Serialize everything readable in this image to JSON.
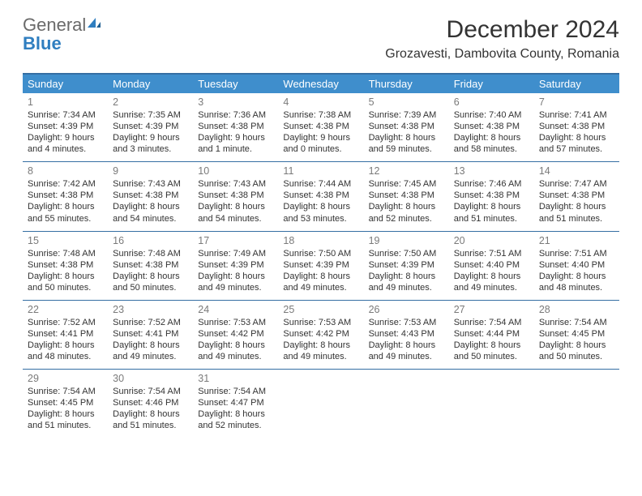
{
  "brand": {
    "part1": "General",
    "part2": "Blue"
  },
  "title": "December 2024",
  "location": "Grozavesti, Dambovita County, Romania",
  "colors": {
    "header_bar": "#3f8ecc",
    "rule": "#356fa3",
    "logo_gray": "#6a6a6a",
    "logo_blue": "#2f7ec0",
    "text": "#333333",
    "daynum": "#7a7a7a",
    "background": "#ffffff"
  },
  "fonts": {
    "title_size": 30,
    "location_size": 16,
    "dow_size": 13,
    "cell_size": 11
  },
  "days_of_week": [
    "Sunday",
    "Monday",
    "Tuesday",
    "Wednesday",
    "Thursday",
    "Friday",
    "Saturday"
  ],
  "weeks": [
    [
      {
        "n": "1",
        "sunrise": "Sunrise: 7:34 AM",
        "sunset": "Sunset: 4:39 PM",
        "day1": "Daylight: 9 hours",
        "day2": "and 4 minutes."
      },
      {
        "n": "2",
        "sunrise": "Sunrise: 7:35 AM",
        "sunset": "Sunset: 4:39 PM",
        "day1": "Daylight: 9 hours",
        "day2": "and 3 minutes."
      },
      {
        "n": "3",
        "sunrise": "Sunrise: 7:36 AM",
        "sunset": "Sunset: 4:38 PM",
        "day1": "Daylight: 9 hours",
        "day2": "and 1 minute."
      },
      {
        "n": "4",
        "sunrise": "Sunrise: 7:38 AM",
        "sunset": "Sunset: 4:38 PM",
        "day1": "Daylight: 9 hours",
        "day2": "and 0 minutes."
      },
      {
        "n": "5",
        "sunrise": "Sunrise: 7:39 AM",
        "sunset": "Sunset: 4:38 PM",
        "day1": "Daylight: 8 hours",
        "day2": "and 59 minutes."
      },
      {
        "n": "6",
        "sunrise": "Sunrise: 7:40 AM",
        "sunset": "Sunset: 4:38 PM",
        "day1": "Daylight: 8 hours",
        "day2": "and 58 minutes."
      },
      {
        "n": "7",
        "sunrise": "Sunrise: 7:41 AM",
        "sunset": "Sunset: 4:38 PM",
        "day1": "Daylight: 8 hours",
        "day2": "and 57 minutes."
      }
    ],
    [
      {
        "n": "8",
        "sunrise": "Sunrise: 7:42 AM",
        "sunset": "Sunset: 4:38 PM",
        "day1": "Daylight: 8 hours",
        "day2": "and 55 minutes."
      },
      {
        "n": "9",
        "sunrise": "Sunrise: 7:43 AM",
        "sunset": "Sunset: 4:38 PM",
        "day1": "Daylight: 8 hours",
        "day2": "and 54 minutes."
      },
      {
        "n": "10",
        "sunrise": "Sunrise: 7:43 AM",
        "sunset": "Sunset: 4:38 PM",
        "day1": "Daylight: 8 hours",
        "day2": "and 54 minutes."
      },
      {
        "n": "11",
        "sunrise": "Sunrise: 7:44 AM",
        "sunset": "Sunset: 4:38 PM",
        "day1": "Daylight: 8 hours",
        "day2": "and 53 minutes."
      },
      {
        "n": "12",
        "sunrise": "Sunrise: 7:45 AM",
        "sunset": "Sunset: 4:38 PM",
        "day1": "Daylight: 8 hours",
        "day2": "and 52 minutes."
      },
      {
        "n": "13",
        "sunrise": "Sunrise: 7:46 AM",
        "sunset": "Sunset: 4:38 PM",
        "day1": "Daylight: 8 hours",
        "day2": "and 51 minutes."
      },
      {
        "n": "14",
        "sunrise": "Sunrise: 7:47 AM",
        "sunset": "Sunset: 4:38 PM",
        "day1": "Daylight: 8 hours",
        "day2": "and 51 minutes."
      }
    ],
    [
      {
        "n": "15",
        "sunrise": "Sunrise: 7:48 AM",
        "sunset": "Sunset: 4:38 PM",
        "day1": "Daylight: 8 hours",
        "day2": "and 50 minutes."
      },
      {
        "n": "16",
        "sunrise": "Sunrise: 7:48 AM",
        "sunset": "Sunset: 4:38 PM",
        "day1": "Daylight: 8 hours",
        "day2": "and 50 minutes."
      },
      {
        "n": "17",
        "sunrise": "Sunrise: 7:49 AM",
        "sunset": "Sunset: 4:39 PM",
        "day1": "Daylight: 8 hours",
        "day2": "and 49 minutes."
      },
      {
        "n": "18",
        "sunrise": "Sunrise: 7:50 AM",
        "sunset": "Sunset: 4:39 PM",
        "day1": "Daylight: 8 hours",
        "day2": "and 49 minutes."
      },
      {
        "n": "19",
        "sunrise": "Sunrise: 7:50 AM",
        "sunset": "Sunset: 4:39 PM",
        "day1": "Daylight: 8 hours",
        "day2": "and 49 minutes."
      },
      {
        "n": "20",
        "sunrise": "Sunrise: 7:51 AM",
        "sunset": "Sunset: 4:40 PM",
        "day1": "Daylight: 8 hours",
        "day2": "and 49 minutes."
      },
      {
        "n": "21",
        "sunrise": "Sunrise: 7:51 AM",
        "sunset": "Sunset: 4:40 PM",
        "day1": "Daylight: 8 hours",
        "day2": "and 48 minutes."
      }
    ],
    [
      {
        "n": "22",
        "sunrise": "Sunrise: 7:52 AM",
        "sunset": "Sunset: 4:41 PM",
        "day1": "Daylight: 8 hours",
        "day2": "and 48 minutes."
      },
      {
        "n": "23",
        "sunrise": "Sunrise: 7:52 AM",
        "sunset": "Sunset: 4:41 PM",
        "day1": "Daylight: 8 hours",
        "day2": "and 49 minutes."
      },
      {
        "n": "24",
        "sunrise": "Sunrise: 7:53 AM",
        "sunset": "Sunset: 4:42 PM",
        "day1": "Daylight: 8 hours",
        "day2": "and 49 minutes."
      },
      {
        "n": "25",
        "sunrise": "Sunrise: 7:53 AM",
        "sunset": "Sunset: 4:42 PM",
        "day1": "Daylight: 8 hours",
        "day2": "and 49 minutes."
      },
      {
        "n": "26",
        "sunrise": "Sunrise: 7:53 AM",
        "sunset": "Sunset: 4:43 PM",
        "day1": "Daylight: 8 hours",
        "day2": "and 49 minutes."
      },
      {
        "n": "27",
        "sunrise": "Sunrise: 7:54 AM",
        "sunset": "Sunset: 4:44 PM",
        "day1": "Daylight: 8 hours",
        "day2": "and 50 minutes."
      },
      {
        "n": "28",
        "sunrise": "Sunrise: 7:54 AM",
        "sunset": "Sunset: 4:45 PM",
        "day1": "Daylight: 8 hours",
        "day2": "and 50 minutes."
      }
    ],
    [
      {
        "n": "29",
        "sunrise": "Sunrise: 7:54 AM",
        "sunset": "Sunset: 4:45 PM",
        "day1": "Daylight: 8 hours",
        "day2": "and 51 minutes."
      },
      {
        "n": "30",
        "sunrise": "Sunrise: 7:54 AM",
        "sunset": "Sunset: 4:46 PM",
        "day1": "Daylight: 8 hours",
        "day2": "and 51 minutes."
      },
      {
        "n": "31",
        "sunrise": "Sunrise: 7:54 AM",
        "sunset": "Sunset: 4:47 PM",
        "day1": "Daylight: 8 hours",
        "day2": "and 52 minutes."
      },
      null,
      null,
      null,
      null
    ]
  ]
}
